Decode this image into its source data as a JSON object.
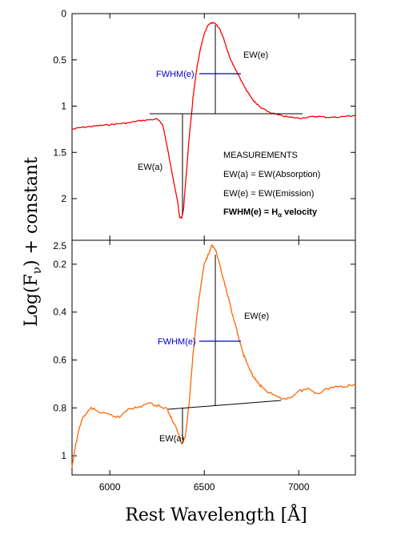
{
  "chart_data": [
    {
      "type": "line",
      "panel": "top",
      "color": "#ff0000",
      "xlim": [
        5800,
        7300
      ],
      "ylim": [
        0,
        2.45
      ],
      "y_inverted": true,
      "yticks": [
        {
          "v": 0,
          "label": "0"
        },
        {
          "v": 0.5,
          "label": "0.5"
        },
        {
          "v": 1,
          "label": "1"
        },
        {
          "v": 1.5,
          "label": "1.5"
        },
        {
          "v": 2,
          "label": "2"
        }
      ],
      "series": [
        {
          "x": [
            5800,
            5850,
            5900,
            5950,
            6000,
            6050,
            6100,
            6150,
            6200,
            6250,
            6280,
            6300,
            6320,
            6340,
            6360,
            6370,
            6380,
            6390,
            6400,
            6420,
            6440,
            6460,
            6480,
            6500,
            6520,
            6540,
            6560,
            6580,
            6600,
            6620,
            6640,
            6660,
            6680,
            6700,
            6720,
            6740,
            6760,
            6780,
            6800,
            6850,
            6900,
            6950,
            7000,
            7050,
            7100,
            7150,
            7200,
            7250,
            7300
          ],
          "y": [
            1.25,
            1.23,
            1.22,
            1.21,
            1.2,
            1.19,
            1.18,
            1.16,
            1.15,
            1.14,
            1.2,
            1.4,
            1.62,
            1.83,
            2.05,
            2.2,
            2.21,
            2.12,
            1.85,
            1.35,
            0.92,
            0.6,
            0.38,
            0.22,
            0.12,
            0.1,
            0.11,
            0.16,
            0.25,
            0.38,
            0.5,
            0.58,
            0.66,
            0.74,
            0.82,
            0.88,
            0.94,
            0.98,
            1.02,
            1.07,
            1.1,
            1.12,
            1.13,
            1.12,
            1.11,
            1.12,
            1.12,
            1.11,
            1.1
          ]
        }
      ],
      "annotations": {
        "ew_a": "EW(a)",
        "ew_e": "EW(e)",
        "fwhm": "FWHM(e)",
        "measurements_title": "MEASUREMENTS",
        "line1": "EW(a) = EW(Absorption)",
        "line2": "EW(e) = EW(Emission)",
        "line3_prefix": "FWHM(e) = H",
        "line3_sub": "α",
        "line3_suffix": " velocity"
      }
    },
    {
      "type": "line",
      "panel": "bottom",
      "color": "#ff6600",
      "xlim": [
        5800,
        7300
      ],
      "ylim": [
        0.1,
        1.08
      ],
      "y_inverted": true,
      "yticks": [
        {
          "v": 0.2,
          "label": "0.2"
        },
        {
          "v": 0.4,
          "label": "0.4"
        },
        {
          "v": 0.6,
          "label": "0.6"
        },
        {
          "v": 0.8,
          "label": "0.8"
        },
        {
          "v": 1,
          "label": "1"
        }
      ],
      "top_corner_label": "2.5",
      "series": [
        {
          "x": [
            5800,
            5820,
            5850,
            5900,
            5950,
            6000,
            6050,
            6100,
            6150,
            6200,
            6250,
            6300,
            6330,
            6360,
            6380,
            6400,
            6420,
            6440,
            6460,
            6480,
            6500,
            6520,
            6540,
            6560,
            6580,
            6600,
            6620,
            6640,
            6660,
            6680,
            6700,
            6720,
            6740,
            6760,
            6780,
            6800,
            6850,
            6900,
            6950,
            7000,
            7050,
            7100,
            7150,
            7200,
            7250,
            7300
          ],
          "y": [
            1.05,
            0.95,
            0.85,
            0.8,
            0.82,
            0.83,
            0.84,
            0.8,
            0.8,
            0.78,
            0.79,
            0.8,
            0.85,
            0.9,
            0.95,
            0.92,
            0.78,
            0.58,
            0.42,
            0.3,
            0.2,
            0.16,
            0.12,
            0.14,
            0.2,
            0.26,
            0.32,
            0.38,
            0.44,
            0.5,
            0.56,
            0.6,
            0.64,
            0.67,
            0.69,
            0.71,
            0.74,
            0.76,
            0.76,
            0.73,
            0.72,
            0.74,
            0.72,
            0.71,
            0.71,
            0.7
          ]
        }
      ],
      "annotations": {
        "ew_a": "EW(a)",
        "ew_e": "EW(e)",
        "fwhm": "FWHM(e)"
      }
    }
  ],
  "shared": {
    "xticks": [
      {
        "v": 6000,
        "label": "6000"
      },
      {
        "v": 6500,
        "label": "6500"
      },
      {
        "v": 7000,
        "label": "7000"
      }
    ],
    "xlabel": "Rest Wavelength [Å]",
    "ylabel_prefix": "Log(F",
    "ylabel_sub": "ν",
    "ylabel_suffix": ") + constant"
  }
}
